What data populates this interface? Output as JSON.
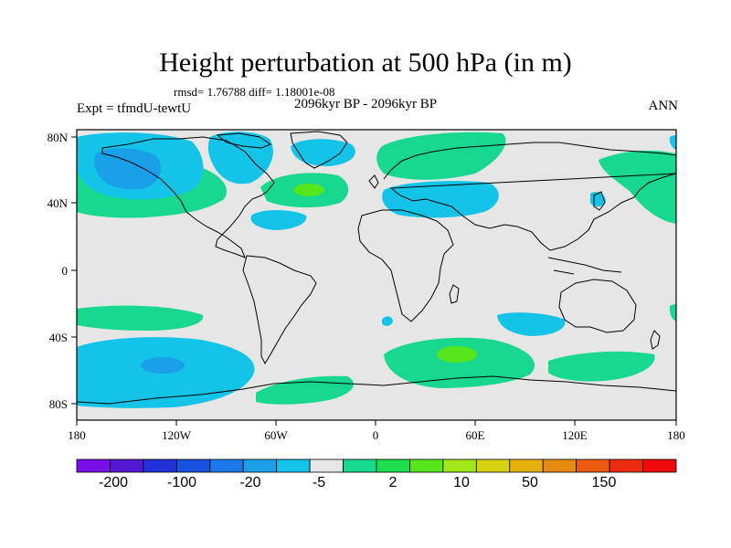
{
  "title": "Height perturbation at 500 hPa (in m)",
  "stats": "rmsd= 1.76788 diff= 1.18001e-08",
  "period": "2096kyr BP - 2096kyr BP",
  "experiment": "Expt = tfmdU-tewtU",
  "season": "ANN",
  "lat_ticks": [
    "80N",
    "40N",
    "0",
    "40S",
    "80S"
  ],
  "lon_ticks": [
    "180",
    "120W",
    "60W",
    "0",
    "60E",
    "120E",
    "180"
  ],
  "colorbar": {
    "colors": [
      "#7a0ee6",
      "#5519d3",
      "#2230d8",
      "#1651df",
      "#1a78e8",
      "#1aa0e8",
      "#14c4e8",
      "#e6e6e6",
      "#18d890",
      "#1ee04e",
      "#57e51c",
      "#a2e61c",
      "#d6d210",
      "#e6b00e",
      "#e68a10",
      "#ec5b10",
      "#ec2a10",
      "#f00a0a"
    ],
    "labels": [
      "-200",
      "-100",
      "-20",
      "-5",
      "2",
      "10",
      "50",
      "150"
    ]
  },
  "palette": {
    "background": "#e6e6e6",
    "strong_negative": "#14c4e8",
    "weak_negative": "#1aa0e8",
    "positive": "#18d890",
    "strong_positive": "#57e51c"
  }
}
